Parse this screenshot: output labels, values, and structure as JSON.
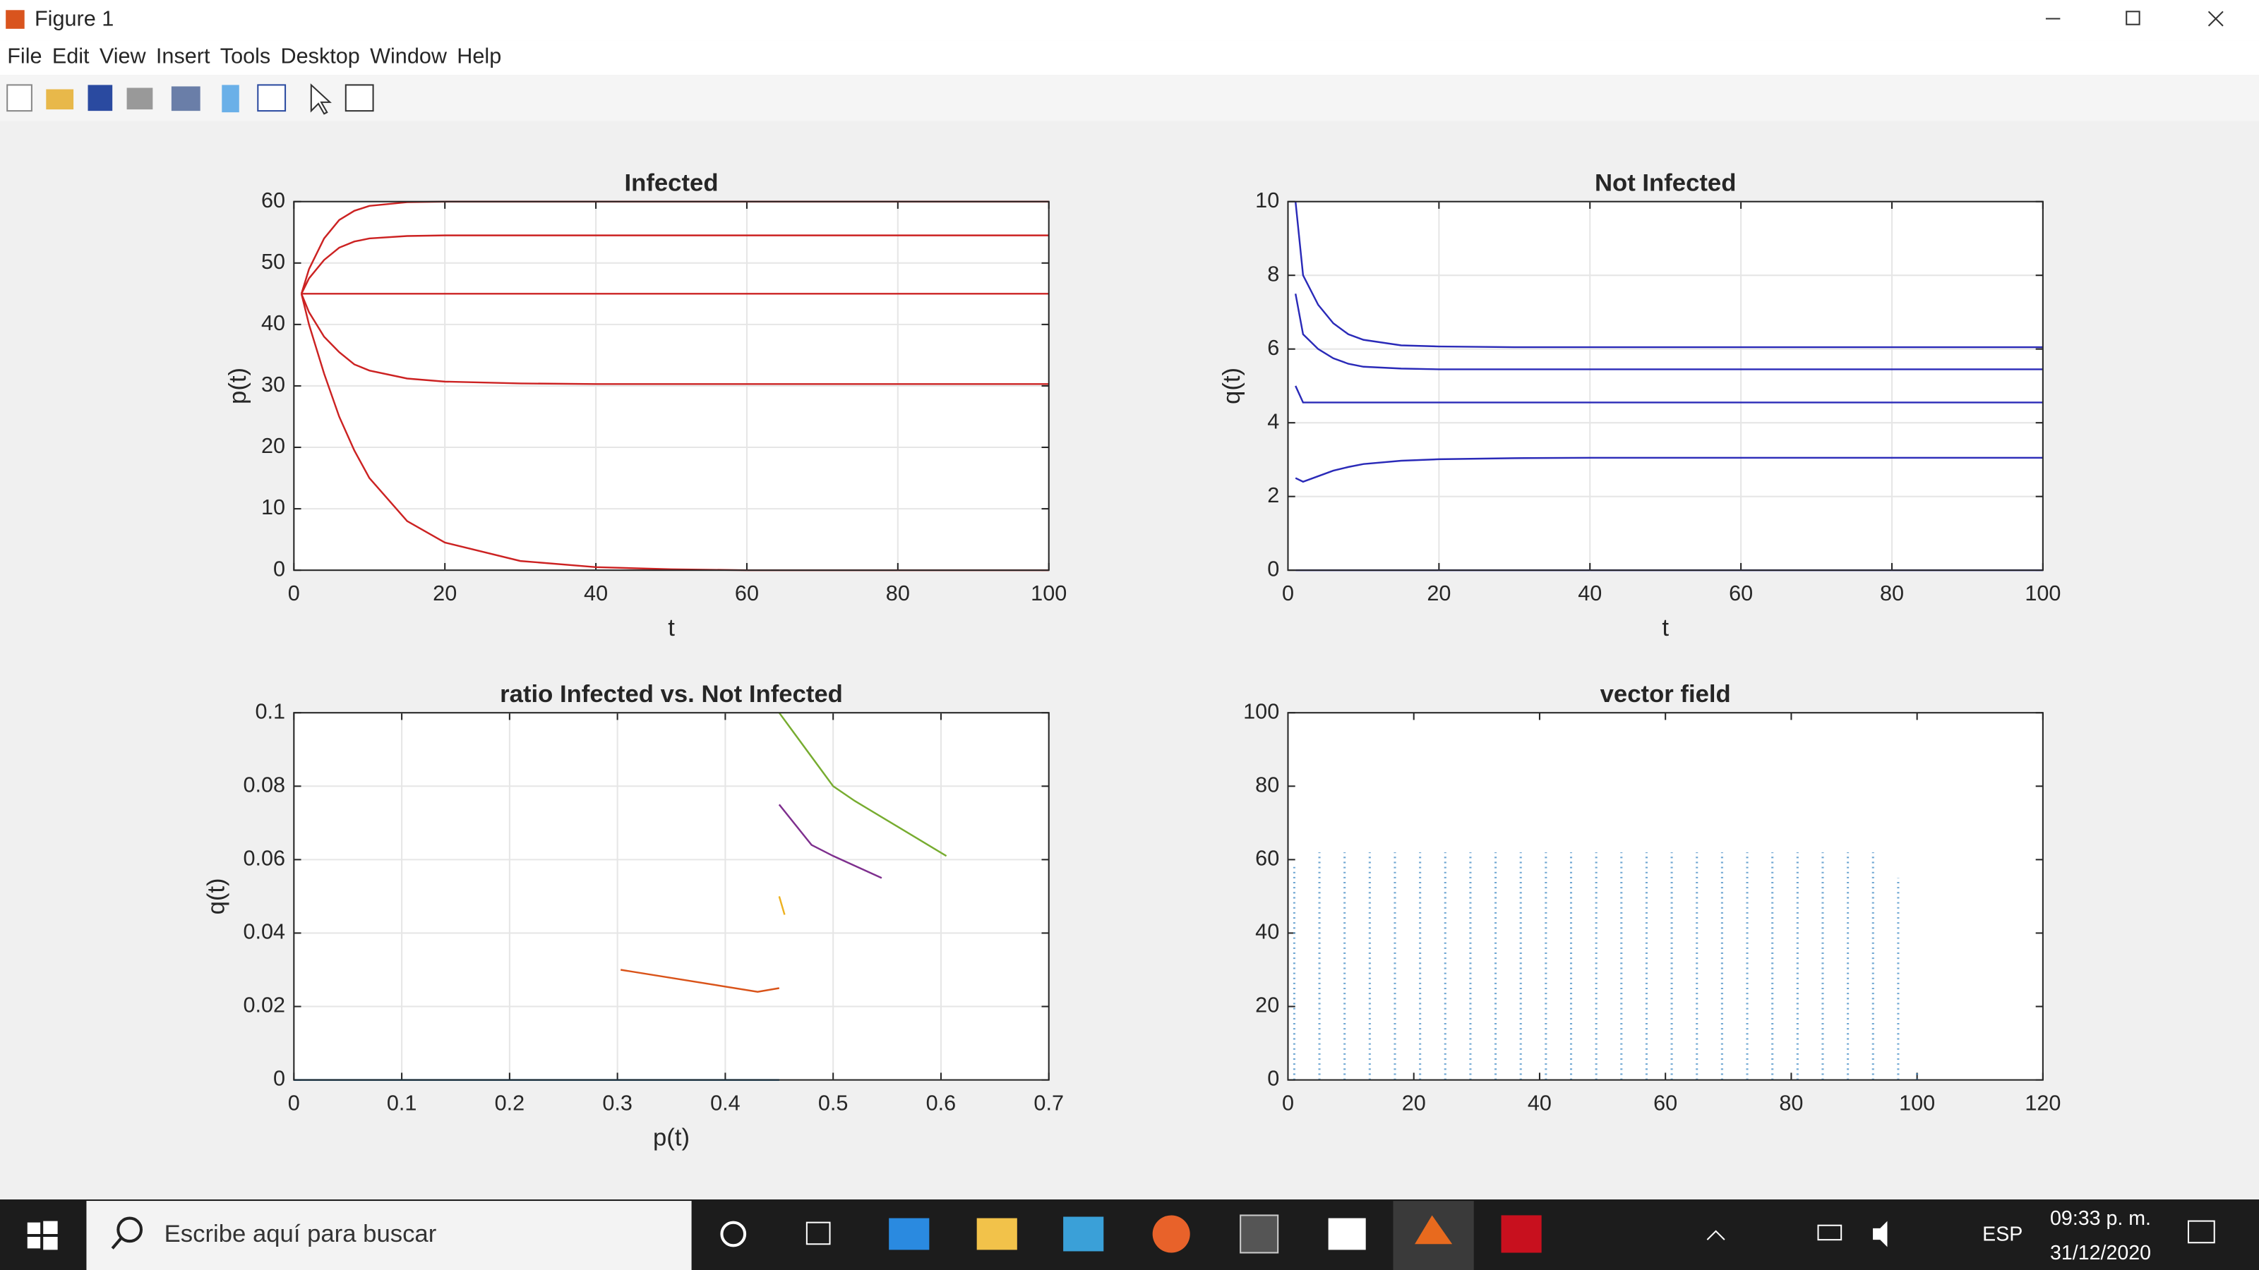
{
  "window": {
    "title": "Figure 1",
    "menu": [
      "File",
      "Edit",
      "View",
      "Insert",
      "Tools",
      "Desktop",
      "Window",
      "Help"
    ]
  },
  "chart_data": [
    {
      "type": "line",
      "title": "Infected",
      "xlabel": "t",
      "ylabel": "p(t)",
      "grid": true,
      "xlim": [
        0,
        100
      ],
      "ylim": [
        0,
        60
      ],
      "xticks": [
        0,
        20,
        40,
        60,
        80,
        100
      ],
      "yticks": [
        0,
        10,
        20,
        30,
        40,
        50,
        60
      ],
      "x": [
        1,
        2,
        4,
        6,
        8,
        10,
        15,
        20,
        30,
        40,
        50,
        60,
        80,
        100
      ],
      "series": [
        {
          "color": "#cc2222",
          "values": [
            45,
            49,
            54,
            57,
            58.5,
            59.3,
            59.9,
            60,
            60,
            60,
            60,
            60,
            60,
            60
          ]
        },
        {
          "color": "#cc2222",
          "values": [
            45,
            47.5,
            50.5,
            52.5,
            53.5,
            54,
            54.4,
            54.5,
            54.5,
            54.5,
            54.5,
            54.5,
            54.5,
            54.5
          ]
        },
        {
          "color": "#cc2222",
          "values": [
            45,
            45,
            45,
            45,
            45,
            45,
            45,
            45,
            45,
            45,
            45,
            45,
            45,
            45
          ]
        },
        {
          "color": "#cc2222",
          "values": [
            45,
            42,
            38,
            35.5,
            33.5,
            32.5,
            31.2,
            30.7,
            30.4,
            30.3,
            30.3,
            30.3,
            30.3,
            30.3
          ]
        },
        {
          "color": "#cc2222",
          "values": [
            45,
            40,
            32,
            25,
            19.5,
            15,
            8,
            4.5,
            1.5,
            0.5,
            0.15,
            0,
            0,
            0
          ]
        }
      ]
    },
    {
      "type": "line",
      "title": "Not Infected",
      "xlabel": "t",
      "ylabel": "q(t)",
      "grid": true,
      "xlim": [
        0,
        100
      ],
      "ylim": [
        0,
        10
      ],
      "xticks": [
        0,
        20,
        40,
        60,
        80,
        100
      ],
      "yticks": [
        0,
        2,
        4,
        6,
        8,
        10
      ],
      "x": [
        1,
        2,
        4,
        6,
        8,
        10,
        15,
        20,
        30,
        40,
        50,
        60,
        80,
        100
      ],
      "series": [
        {
          "color": "#2a2ab8",
          "values": [
            10,
            8,
            7.2,
            6.7,
            6.4,
            6.25,
            6.1,
            6.07,
            6.05,
            6.05,
            6.05,
            6.05,
            6.05,
            6.05
          ]
        },
        {
          "color": "#2a2ab8",
          "values": [
            7.5,
            6.4,
            6,
            5.75,
            5.6,
            5.52,
            5.47,
            5.45,
            5.45,
            5.45,
            5.45,
            5.45,
            5.45,
            5.45
          ]
        },
        {
          "color": "#2a2ab8",
          "values": [
            5,
            4.55,
            4.55,
            4.55,
            4.55,
            4.55,
            4.55,
            4.55,
            4.55,
            4.55,
            4.55,
            4.55,
            4.55,
            4.55
          ]
        },
        {
          "color": "#2a2ab8",
          "values": [
            2.5,
            2.4,
            2.55,
            2.7,
            2.8,
            2.88,
            2.97,
            3.01,
            3.04,
            3.05,
            3.05,
            3.05,
            3.05,
            3.05
          ]
        },
        {
          "color": "#2a2ab8",
          "values": [
            0,
            0,
            0,
            0,
            0,
            0,
            0,
            0,
            0,
            0,
            0,
            0,
            0,
            0
          ]
        }
      ]
    },
    {
      "type": "line",
      "title": "ratio Infected vs. Not Infected",
      "xlabel": "p(t)",
      "ylabel": "q(t)",
      "grid": true,
      "xlim": [
        0,
        0.7
      ],
      "ylim": [
        0,
        0.1
      ],
      "xticks": [
        0,
        0.1,
        0.2,
        0.3,
        0.4,
        0.5,
        0.6,
        0.7
      ],
      "yticks": [
        0,
        0.02,
        0.04,
        0.06,
        0.08,
        0.1
      ],
      "series": [
        {
          "color": "#0072bd",
          "x": [
            0,
            0.45
          ],
          "values": [
            0,
            0
          ]
        },
        {
          "color": "#d95319",
          "x": [
            0.303,
            0.43,
            0.45
          ],
          "values": [
            0.03,
            0.024,
            0.025
          ]
        },
        {
          "color": "#edb120",
          "x": [
            0.45,
            0.455
          ],
          "values": [
            0.05,
            0.045
          ]
        },
        {
          "color": "#7e2f8e",
          "x": [
            0.45,
            0.48,
            0.5,
            0.545
          ],
          "values": [
            0.075,
            0.064,
            0.061,
            0.055
          ]
        },
        {
          "color": "#77ac30",
          "x": [
            0.45,
            0.5,
            0.52,
            0.605
          ],
          "values": [
            0.1,
            0.08,
            0.076,
            0.061
          ]
        }
      ]
    },
    {
      "type": "quiver",
      "title": "vector field",
      "grid": false,
      "color": "#4a90c8",
      "xlim": [
        0,
        120
      ],
      "ylim": [
        0,
        100
      ],
      "xticks": [
        0,
        20,
        40,
        60,
        80,
        100,
        120
      ],
      "yticks": [
        0,
        20,
        40,
        60,
        80,
        100
      ],
      "x": [
        1,
        5,
        9,
        13,
        17,
        21,
        25,
        29,
        33,
        37,
        41,
        45,
        49,
        53,
        57,
        61,
        65,
        69,
        73,
        77,
        81,
        85,
        89,
        93,
        97,
        100
      ],
      "values": [
        58,
        62,
        62,
        62,
        62,
        62,
        62,
        62,
        62,
        62,
        62,
        62,
        62,
        62,
        62,
        62,
        62,
        62,
        62,
        62,
        62,
        62,
        62,
        62,
        55,
        2
      ]
    }
  ],
  "taskbar": {
    "search": "Escribe aquí para buscar",
    "language": "ESP",
    "time": "09:33 p. m.",
    "date": "31/12/2020"
  }
}
